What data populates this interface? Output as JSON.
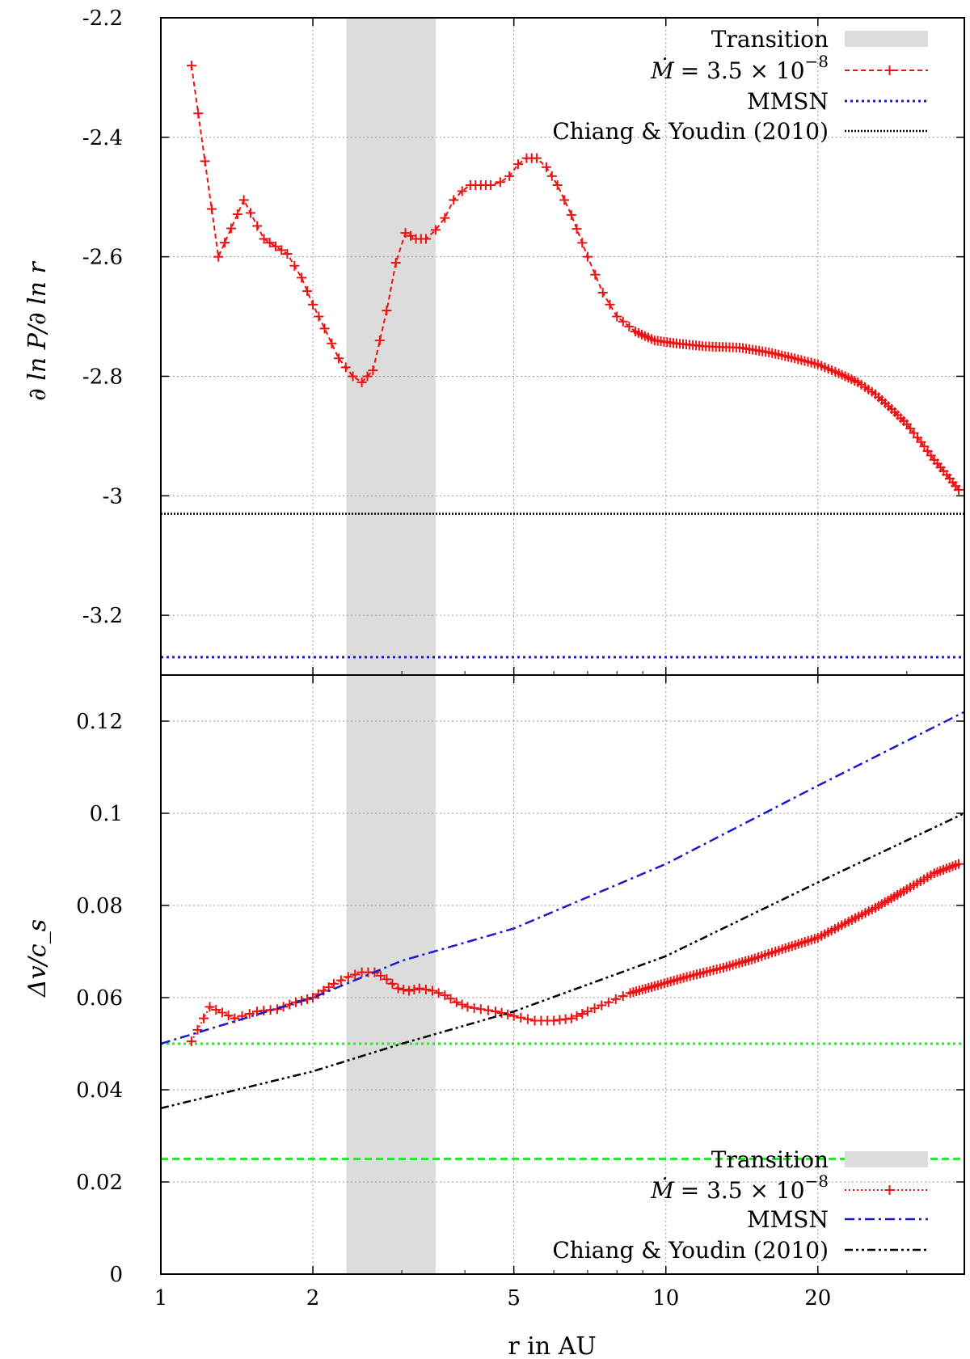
{
  "colors": {
    "transition_band": "#dcdcdc",
    "mdot_series": "#ee1111",
    "mmsn_series": "#1a1acc",
    "chiang_series": "#000000",
    "threshold_lines": "#22ee22",
    "grid": "#999999"
  },
  "chart_data": [
    {
      "type": "line",
      "panel": "top",
      "ylabel": "∂ ln P/∂ ln r",
      "xlabel": "",
      "x_scale": "log",
      "xlim": [
        1,
        39
      ],
      "ylim": [
        -3.3,
        -2.2
      ],
      "x_ticks": [
        1,
        2,
        5,
        10,
        20
      ],
      "y_ticks": [
        -2.2,
        -2.4,
        -2.6,
        -2.8,
        -3,
        -3.2
      ],
      "y_tick_labels": [
        "-2.2",
        "-2.4",
        "-2.6",
        "-2.8",
        "-3",
        "-3.2"
      ],
      "grid": true,
      "legend_position": "top-right",
      "transition_band": [
        2.33,
        3.5
      ],
      "series": [
        {
          "name": "Ṁ = 3.5 × 10^−8",
          "style": "dashed-with-plus-markers",
          "points": [
            [
              1.15,
              -2.28
            ],
            [
              1.3,
              -2.6
            ],
            [
              1.46,
              -2.505
            ],
            [
              1.6,
              -2.57
            ],
            [
              1.78,
              -2.595
            ],
            [
              1.9,
              -2.635
            ],
            [
              2.0,
              -2.68
            ],
            [
              2.11,
              -2.72
            ],
            [
              2.25,
              -2.77
            ],
            [
              2.4,
              -2.8
            ],
            [
              2.5,
              -2.81
            ],
            [
              2.63,
              -2.79
            ],
            [
              2.8,
              -2.69
            ],
            [
              2.92,
              -2.61
            ],
            [
              3.05,
              -2.56
            ],
            [
              3.2,
              -2.57
            ],
            [
              3.35,
              -2.57
            ],
            [
              3.5,
              -2.555
            ],
            [
              3.65,
              -2.535
            ],
            [
              3.8,
              -2.505
            ],
            [
              3.95,
              -2.49
            ],
            [
              4.1,
              -2.48
            ],
            [
              4.3,
              -2.48
            ],
            [
              4.5,
              -2.48
            ],
            [
              4.7,
              -2.475
            ],
            [
              4.9,
              -2.465
            ],
            [
              5.1,
              -2.445
            ],
            [
              5.3,
              -2.435
            ],
            [
              5.55,
              -2.435
            ],
            [
              5.8,
              -2.45
            ],
            [
              6.1,
              -2.48
            ],
            [
              6.5,
              -2.53
            ],
            [
              7.0,
              -2.6
            ],
            [
              7.5,
              -2.66
            ],
            [
              8.0,
              -2.7
            ],
            [
              8.7,
              -2.725
            ],
            [
              9.5,
              -2.74
            ],
            [
              10.5,
              -2.745
            ],
            [
              12,
              -2.75
            ],
            [
              14,
              -2.752
            ],
            [
              16,
              -2.76
            ],
            [
              18,
              -2.77
            ],
            [
              20,
              -2.78
            ],
            [
              22,
              -2.795
            ],
            [
              24,
              -2.81
            ],
            [
              26,
              -2.83
            ],
            [
              28,
              -2.855
            ],
            [
              30,
              -2.88
            ],
            [
              32,
              -2.91
            ],
            [
              34,
              -2.94
            ],
            [
              36,
              -2.965
            ],
            [
              38,
              -2.99
            ]
          ]
        },
        {
          "name": "MMSN",
          "style": "dotted",
          "constant": -3.27
        },
        {
          "name": "Chiang & Youdin (2010)",
          "style": "fine-dotted",
          "constant": -3.03
        }
      ],
      "legend": [
        {
          "label": "Transition",
          "kind": "band"
        },
        {
          "label_math": "Ṁ",
          "label_rest": "= 3.5 × 10",
          "label_exp": "−8",
          "kind": "mdot-dashed"
        },
        {
          "label": "MMSN",
          "kind": "mmsn-dotted"
        },
        {
          "label": "Chiang & Youdin (2010)",
          "kind": "chiang-dotted"
        }
      ]
    },
    {
      "type": "line",
      "panel": "bottom",
      "ylabel": "Δv/c_s",
      "xlabel": "r in AU",
      "x_scale": "log",
      "xlim": [
        1,
        39
      ],
      "ylim": [
        0,
        0.13
      ],
      "x_ticks": [
        1,
        2,
        5,
        10,
        20
      ],
      "x_tick_labels": [
        "1",
        "2",
        "5",
        "10",
        "20"
      ],
      "y_ticks": [
        0,
        0.02,
        0.04,
        0.06,
        0.08,
        0.1,
        0.12
      ],
      "y_tick_labels": [
        "0",
        "0.02",
        "0.04",
        "0.06",
        "0.08",
        "0.1",
        "0.12"
      ],
      "grid": true,
      "legend_position": "bottom-right",
      "transition_band": [
        2.33,
        3.5
      ],
      "reference_lines": [
        {
          "y": 0.05,
          "style": "dotted"
        },
        {
          "y": 0.025,
          "style": "dashed"
        }
      ],
      "series": [
        {
          "name": "Ṁ = 3.5 × 10^−8",
          "style": "dotted-with-plus-markers",
          "points": [
            [
              1.15,
              0.0505
            ],
            [
              1.25,
              0.058
            ],
            [
              1.4,
              0.0555
            ],
            [
              1.55,
              0.057
            ],
            [
              1.7,
              0.0575
            ],
            [
              1.85,
              0.059
            ],
            [
              2.0,
              0.06
            ],
            [
              2.1,
              0.0615
            ],
            [
              2.2,
              0.063
            ],
            [
              2.35,
              0.0645
            ],
            [
              2.5,
              0.0655
            ],
            [
              2.65,
              0.0655
            ],
            [
              2.8,
              0.064
            ],
            [
              2.95,
              0.062
            ],
            [
              3.1,
              0.0615
            ],
            [
              3.25,
              0.062
            ],
            [
              3.45,
              0.0615
            ],
            [
              3.65,
              0.0605
            ],
            [
              3.85,
              0.059
            ],
            [
              4.05,
              0.058
            ],
            [
              4.3,
              0.0575
            ],
            [
              4.6,
              0.057
            ],
            [
              5.0,
              0.056
            ],
            [
              5.5,
              0.055
            ],
            [
              6.0,
              0.055
            ],
            [
              6.5,
              0.0555
            ],
            [
              7.0,
              0.057
            ],
            [
              7.7,
              0.059
            ],
            [
              8.5,
              0.061
            ],
            [
              9.5,
              0.0625
            ],
            [
              11,
              0.0645
            ],
            [
              13,
              0.0665
            ],
            [
              15,
              0.0685
            ],
            [
              17,
              0.0705
            ],
            [
              20,
              0.073
            ],
            [
              23,
              0.0765
            ],
            [
              26,
              0.0795
            ],
            [
              30,
              0.0835
            ],
            [
              34,
              0.087
            ],
            [
              38,
              0.089
            ]
          ]
        },
        {
          "name": "MMSN",
          "style": "dash-dot",
          "points": [
            [
              1,
              0.05
            ],
            [
              2,
              0.06
            ],
            [
              3,
              0.068
            ],
            [
              5,
              0.075
            ],
            [
              10,
              0.089
            ],
            [
              20,
              0.106
            ],
            [
              39,
              0.122
            ]
          ]
        },
        {
          "name": "Chiang & Youdin (2010)",
          "style": "dash-dot-dot",
          "points": [
            [
              1,
              0.036
            ],
            [
              2,
              0.044
            ],
            [
              3,
              0.05
            ],
            [
              5,
              0.057
            ],
            [
              10,
              0.069
            ],
            [
              20,
              0.085
            ],
            [
              39,
              0.1
            ]
          ]
        }
      ],
      "legend": [
        {
          "label": "Transition",
          "kind": "band"
        },
        {
          "label_math": "Ṁ",
          "label_rest": "= 3.5 × 10",
          "label_exp": "−8",
          "kind": "mdot-dotted"
        },
        {
          "label": "MMSN",
          "kind": "mmsn-dashdot"
        },
        {
          "label": "Chiang & Youdin (2010)",
          "kind": "chiang-dashdotdot"
        }
      ]
    }
  ]
}
